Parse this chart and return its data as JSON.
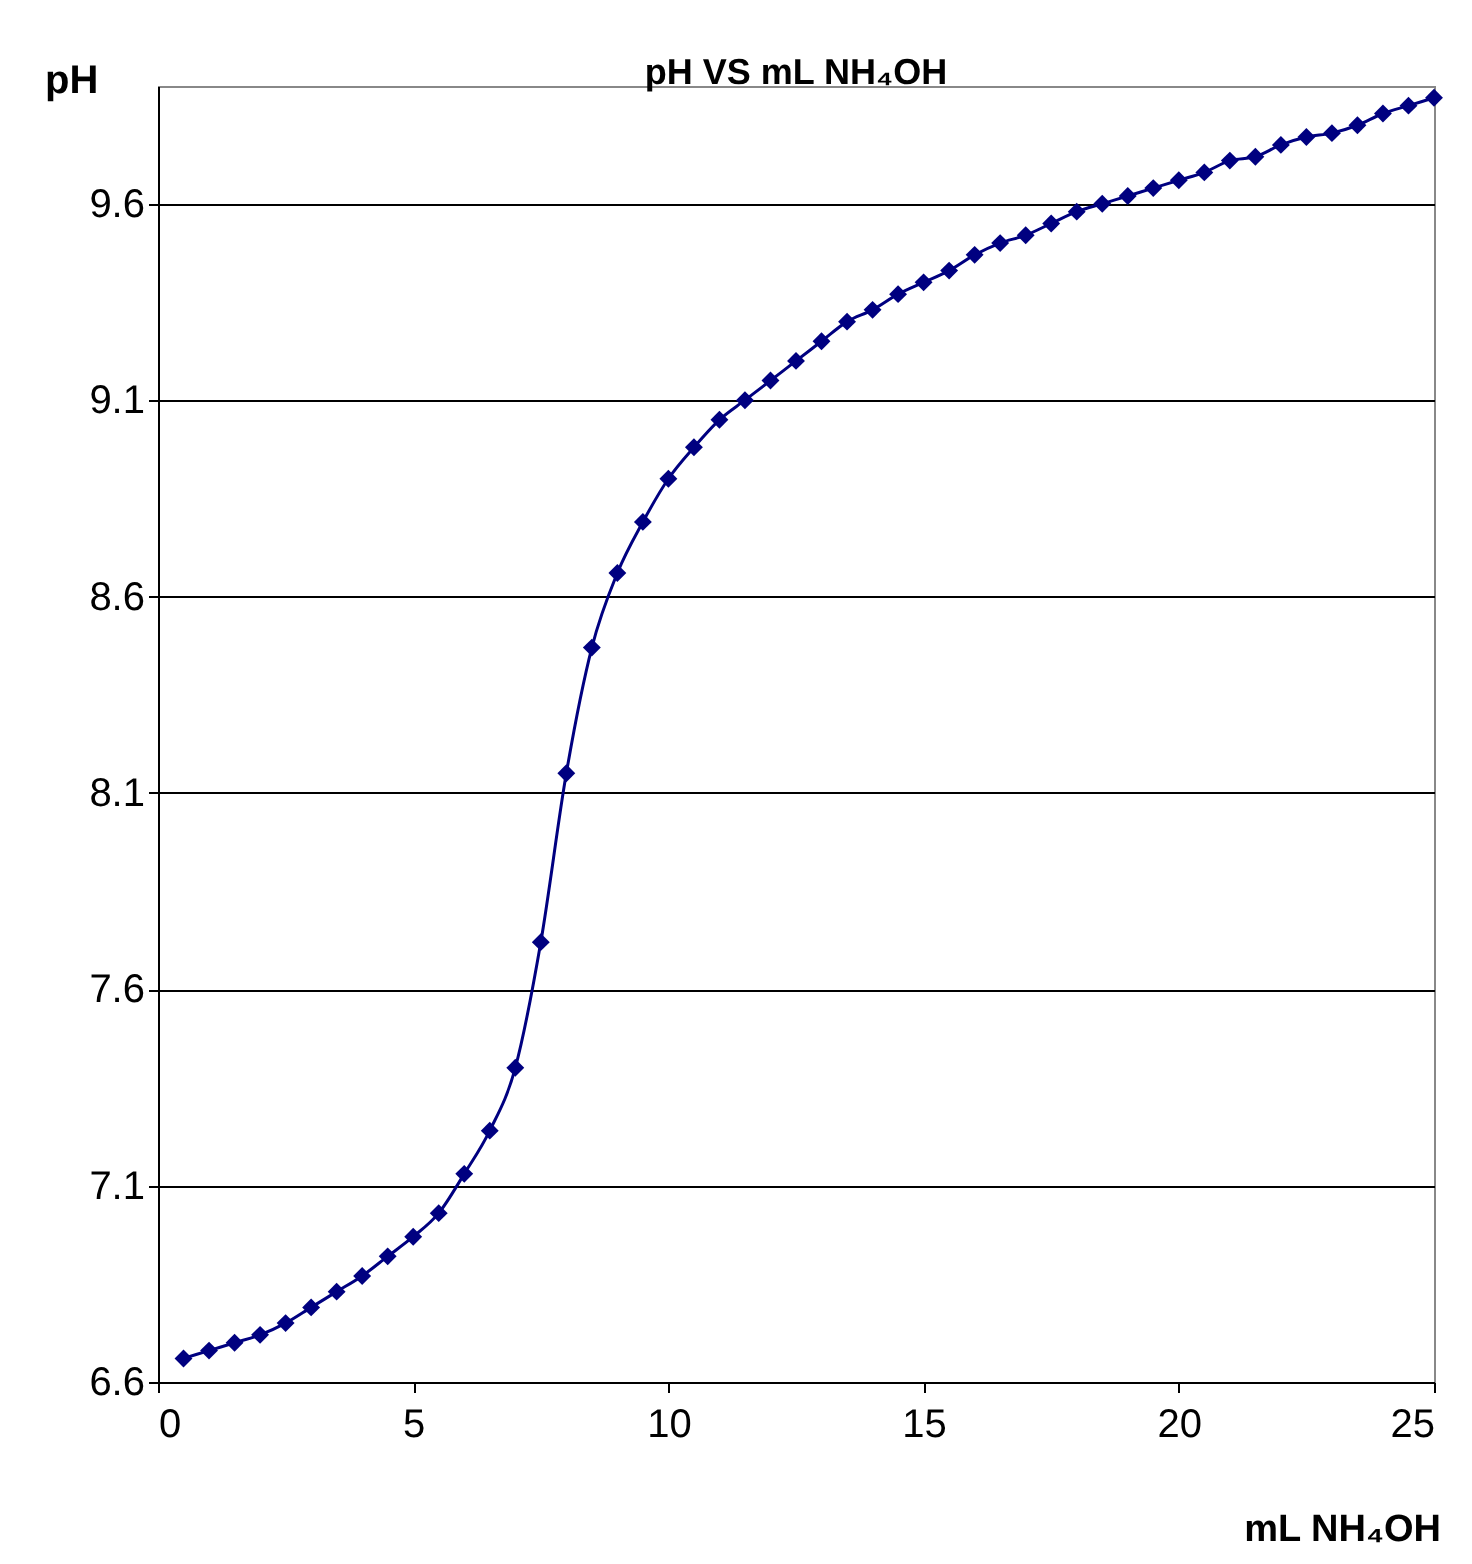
{
  "chart_data": {
    "type": "line",
    "title": "pH VS mL NH₄OH",
    "xlabel": "mL NH₄OH",
    "ylabel": "pH",
    "x": [
      0.5,
      1,
      1.5,
      2,
      2.5,
      3,
      3.5,
      4,
      4.5,
      5,
      5.5,
      6,
      6.5,
      7,
      7.5,
      8,
      8.5,
      9,
      9.5,
      10,
      10.5,
      11,
      11.5,
      12,
      12.5,
      13,
      13.5,
      14,
      14.5,
      15,
      15.5,
      16,
      16.5,
      17,
      17.5,
      18,
      18.5,
      19,
      19.5,
      20,
      20.5,
      21,
      21.5,
      22,
      22.5,
      23,
      23.5,
      24,
      24.5,
      25
    ],
    "series": [
      {
        "color": "#000080",
        "values": [
          6.66,
          6.68,
          6.7,
          6.72,
          6.75,
          6.79,
          6.83,
          6.87,
          6.92,
          6.97,
          7.03,
          7.13,
          7.24,
          7.4,
          7.72,
          8.15,
          8.47,
          8.66,
          8.79,
          8.9,
          8.98,
          9.05,
          9.1,
          9.15,
          9.2,
          9.25,
          9.3,
          9.33,
          9.37,
          9.4,
          9.43,
          9.47,
          9.5,
          9.52,
          9.55,
          9.58,
          9.6,
          9.62,
          9.64,
          9.66,
          9.68,
          9.71,
          9.72,
          9.75,
          9.77,
          9.78,
          9.8,
          9.83,
          9.85,
          9.87
        ]
      }
    ],
    "xlim": [
      0,
      25
    ],
    "xticks": [
      0,
      5,
      10,
      15,
      20,
      25
    ],
    "ylim": [
      6.6,
      9.9
    ],
    "yticks": [
      6.6,
      7.1,
      7.6,
      8.1,
      8.6,
      9.1,
      9.6
    ],
    "grid": "y",
    "marker": "diamond",
    "line_style": "solid"
  }
}
